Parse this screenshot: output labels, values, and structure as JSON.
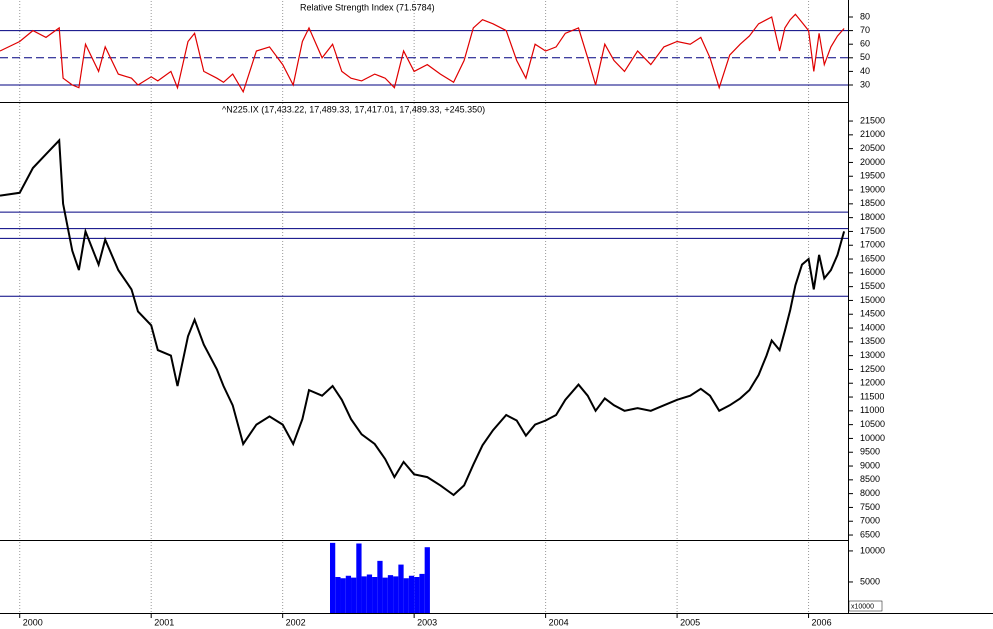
{
  "chart_data": [
    {
      "type": "line",
      "title": "Relative Strength Index (71.5784)",
      "color": "#e00000",
      "x": [
        1999.85,
        2000.0,
        2000.1,
        2000.2,
        2000.3,
        2000.33,
        2000.4,
        2000.45,
        2000.5,
        2000.6,
        2000.65,
        2000.75,
        2000.85,
        2000.9,
        2001.0,
        2001.05,
        2001.15,
        2001.2,
        2001.28,
        2001.33,
        2001.4,
        2001.5,
        2001.55,
        2001.62,
        2001.7,
        2001.8,
        2001.9,
        2002.0,
        2002.08,
        2002.15,
        2002.2,
        2002.3,
        2002.38,
        2002.45,
        2002.52,
        2002.6,
        2002.7,
        2002.78,
        2002.85,
        2002.92,
        2003.0,
        2003.1,
        2003.2,
        2003.3,
        2003.38,
        2003.45,
        2003.52,
        2003.6,
        2003.7,
        2003.78,
        2003.85,
        2003.92,
        2004.0,
        2004.08,
        2004.15,
        2004.25,
        2004.32,
        2004.38,
        2004.45,
        2004.52,
        2004.6,
        2004.7,
        2004.8,
        2004.9,
        2005.0,
        2005.1,
        2005.18,
        2005.25,
        2005.32,
        2005.4,
        2005.48,
        2005.55,
        2005.62,
        2005.68,
        2005.72,
        2005.78,
        2005.82,
        2005.86,
        2005.9,
        2005.95,
        2006.0,
        2006.04,
        2006.08,
        2006.12,
        2006.17,
        2006.22,
        2006.27
      ],
      "values": [
        55,
        62,
        70,
        65,
        72,
        35,
        30,
        28,
        60,
        40,
        58,
        38,
        35,
        30,
        36,
        33,
        40,
        28,
        62,
        68,
        40,
        35,
        32,
        38,
        25,
        55,
        58,
        45,
        30,
        62,
        72,
        50,
        60,
        40,
        35,
        33,
        38,
        35,
        28,
        55,
        40,
        45,
        38,
        32,
        48,
        72,
        78,
        75,
        70,
        48,
        35,
        60,
        55,
        58,
        68,
        72,
        50,
        30,
        60,
        48,
        40,
        55,
        45,
        58,
        62,
        60,
        65,
        50,
        28,
        52,
        60,
        66,
        75,
        78,
        80,
        55,
        72,
        78,
        82,
        76,
        70,
        40,
        68,
        45,
        58,
        66,
        71.5784
      ],
      "xlim": [
        1999.85,
        2006.3
      ],
      "ylim": [
        17.5,
        92.5
      ],
      "yticks": [
        30,
        40,
        50,
        60,
        70,
        80
      ],
      "hlines": [
        70,
        30
      ],
      "dashed_hlines": [
        50
      ],
      "hline_color": "#000080"
    },
    {
      "type": "line",
      "title": "^N225.IX (17,433.22, 17,489.33, 17,417.01, 17,489.33, +245.350)",
      "color": "#000000",
      "x": [
        1999.85,
        2000.0,
        2000.1,
        2000.2,
        2000.3,
        2000.33,
        2000.4,
        2000.45,
        2000.5,
        2000.6,
        2000.65,
        2000.75,
        2000.85,
        2000.9,
        2001.0,
        2001.05,
        2001.15,
        2001.2,
        2001.28,
        2001.33,
        2001.4,
        2001.5,
        2001.55,
        2001.62,
        2001.7,
        2001.8,
        2001.9,
        2002.0,
        2002.08,
        2002.15,
        2002.2,
        2002.3,
        2002.38,
        2002.45,
        2002.52,
        2002.6,
        2002.7,
        2002.78,
        2002.85,
        2002.92,
        2003.0,
        2003.1,
        2003.2,
        2003.3,
        2003.38,
        2003.45,
        2003.52,
        2003.6,
        2003.7,
        2003.78,
        2003.85,
        2003.92,
        2004.0,
        2004.08,
        2004.15,
        2004.25,
        2004.32,
        2004.38,
        2004.45,
        2004.52,
        2004.6,
        2004.7,
        2004.8,
        2004.9,
        2005.0,
        2005.1,
        2005.18,
        2005.25,
        2005.32,
        2005.4,
        2005.48,
        2005.55,
        2005.62,
        2005.68,
        2005.72,
        2005.78,
        2005.82,
        2005.86,
        2005.9,
        2005.95,
        2006.0,
        2006.04,
        2006.08,
        2006.12,
        2006.17,
        2006.22,
        2006.27
      ],
      "values": [
        18800,
        18900,
        19800,
        20300,
        20800,
        18500,
        16800,
        16100,
        17500,
        16300,
        17200,
        16100,
        15400,
        14600,
        14100,
        13200,
        13000,
        11900,
        13700,
        14300,
        13400,
        12500,
        11900,
        11200,
        9800,
        10500,
        10800,
        10500,
        9800,
        10700,
        11750,
        11550,
        11900,
        11400,
        10700,
        10150,
        9800,
        9250,
        8600,
        9150,
        8700,
        8600,
        8300,
        7950,
        8300,
        9050,
        9750,
        10300,
        10850,
        10650,
        10100,
        10500,
        10650,
        10850,
        11400,
        11950,
        11550,
        11000,
        11450,
        11200,
        11000,
        11100,
        11000,
        11200,
        11400,
        11550,
        11800,
        11550,
        11000,
        11200,
        11450,
        11750,
        12300,
        13000,
        13550,
        13200,
        13900,
        14650,
        15550,
        16300,
        16500,
        15400,
        16650,
        15800,
        16100,
        16650,
        17500
      ],
      "xlim": [
        1999.85,
        2006.3
      ],
      "ylim": [
        6320,
        22190
      ],
      "yticks": [
        6500,
        7000,
        7500,
        8000,
        8500,
        9000,
        9500,
        10000,
        10500,
        11000,
        11500,
        12000,
        12500,
        13000,
        13500,
        14000,
        14500,
        15000,
        15500,
        16000,
        16500,
        17000,
        17500,
        18000,
        18500,
        19000,
        19500,
        20000,
        20500,
        21000,
        21500
      ],
      "hlines": [
        18200,
        17600,
        17250,
        15150
      ],
      "hline_color": "#000080"
    },
    {
      "type": "bar",
      "color": "#0000ff",
      "scale_label": "x10000",
      "x": [
        2002.38,
        2002.42,
        2002.46,
        2002.5,
        2002.54,
        2002.58,
        2002.62,
        2002.66,
        2002.7,
        2002.74,
        2002.78,
        2002.82,
        2002.86,
        2002.9,
        2002.94,
        2002.98,
        2003.02,
        2003.06,
        2003.1
      ],
      "values": [
        11300,
        5800,
        5600,
        6000,
        5700,
        11200,
        5900,
        6200,
        5800,
        8400,
        5700,
        6100,
        5900,
        7800,
        5600,
        6000,
        5800,
        6300,
        10600
      ],
      "bar_width": 0.04,
      "xlim": [
        1999.85,
        2006.3
      ],
      "ylim": [
        0,
        11600
      ],
      "yticks": [
        5000,
        10000
      ],
      "xticks": [
        2000,
        2001,
        2002,
        2003,
        2004,
        2005,
        2006
      ]
    }
  ]
}
